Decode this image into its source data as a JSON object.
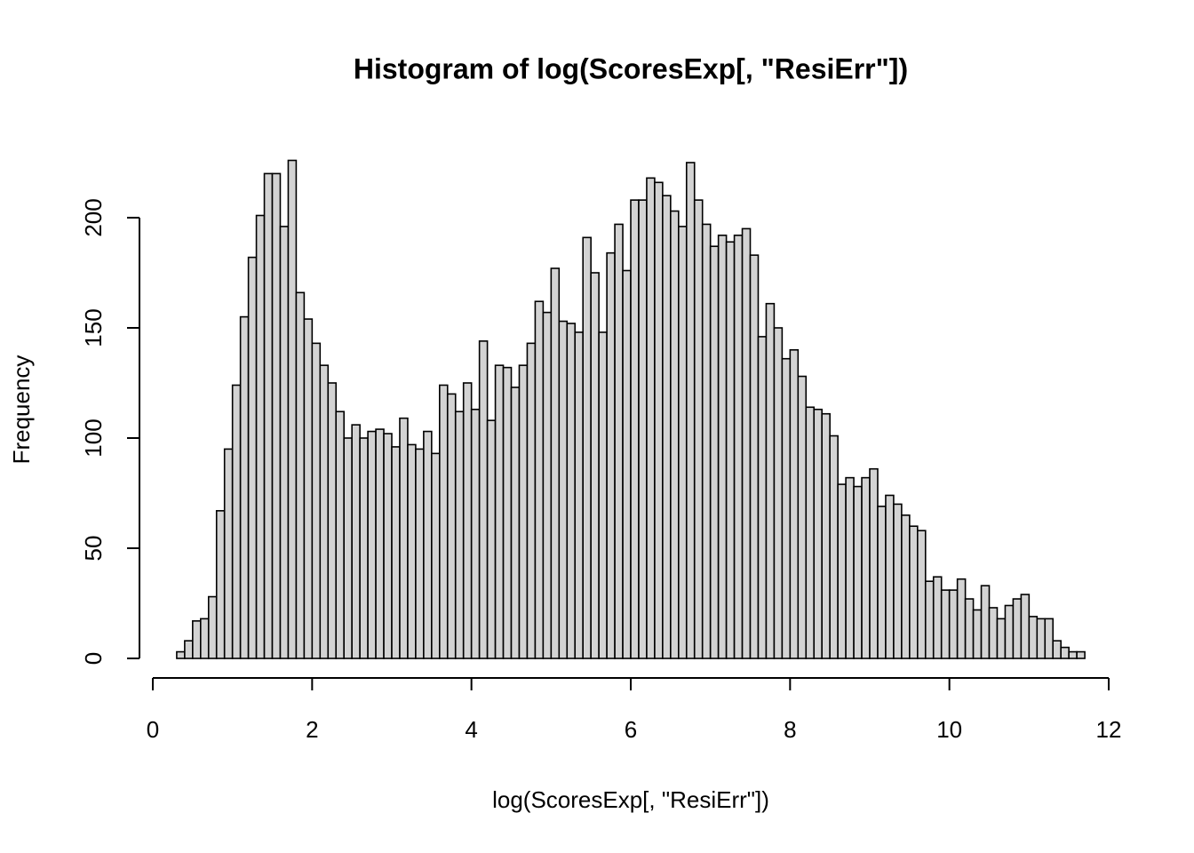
{
  "chart_data": {
    "type": "histogram",
    "title": "Histogram of log(ScoresExp[, \"ResiErr\"])",
    "xlabel": "log(ScoresExp[, \"ResiErr\"])",
    "ylabel": "Frequency",
    "bins": [
      0.3,
      0.4,
      0.5,
      0.6,
      0.7,
      0.8,
      0.9,
      1.0,
      1.1,
      1.2,
      1.3,
      1.4,
      1.5,
      1.6,
      1.7,
      1.8,
      1.9,
      2.0,
      2.1,
      2.2,
      2.3,
      2.4,
      2.5,
      2.6,
      2.7,
      2.8,
      2.9,
      3.0,
      3.1,
      3.2,
      3.3,
      3.4,
      3.5,
      3.6,
      3.7,
      3.8,
      3.9,
      4.0,
      4.1,
      4.2,
      4.3,
      4.4,
      4.5,
      4.6,
      4.7,
      4.8,
      4.9,
      5.0,
      5.1,
      5.2,
      5.3,
      5.4,
      5.5,
      5.6,
      5.7,
      5.8,
      5.9,
      6.0,
      6.1,
      6.2,
      6.3,
      6.4,
      6.5,
      6.6,
      6.7,
      6.8,
      6.9,
      7.0,
      7.1,
      7.2,
      7.3,
      7.4,
      7.5,
      7.6,
      7.7,
      7.8,
      7.9,
      8.0,
      8.1,
      8.2,
      8.3,
      8.4,
      8.5,
      8.6,
      8.7,
      8.8,
      8.9,
      9.0,
      9.1,
      9.2,
      9.3,
      9.4,
      9.5,
      9.6,
      9.7,
      9.8,
      9.9,
      10.0,
      10.1,
      10.2,
      10.3,
      10.4,
      10.5,
      10.6,
      10.7,
      10.8,
      10.9,
      11.0,
      11.1,
      11.2,
      11.3,
      11.4,
      11.5,
      11.6,
      11.7
    ],
    "values": [
      3,
      8,
      17,
      18,
      28,
      67,
      95,
      124,
      155,
      182,
      201,
      220,
      220,
      196,
      226,
      166,
      154,
      143,
      133,
      125,
      112,
      100,
      106,
      100,
      103,
      104,
      102,
      96,
      109,
      97,
      95,
      103,
      93,
      124,
      120,
      112,
      125,
      113,
      144,
      108,
      133,
      132,
      123,
      133,
      143,
      162,
      157,
      177,
      153,
      152,
      148,
      191,
      175,
      148,
      184,
      197,
      176,
      208,
      208,
      218,
      216,
      210,
      203,
      196,
      225,
      208,
      197,
      187,
      192,
      189,
      192,
      195,
      183,
      146,
      161,
      150,
      136,
      140,
      128,
      114,
      113,
      111,
      101,
      79,
      82,
      78,
      82,
      86,
      69,
      74,
      70,
      65,
      60,
      58,
      35,
      37,
      31,
      31,
      36,
      27,
      22,
      33,
      23,
      18,
      24,
      27,
      29,
      19,
      18,
      18,
      8,
      5,
      3,
      3
    ],
    "color": "#d3d3d3",
    "xlim": [
      0,
      12
    ],
    "xticks": [
      0,
      2,
      4,
      6,
      8,
      10,
      12
    ],
    "ylim": [
      0,
      226
    ],
    "yticks": [
      0,
      50,
      100,
      150,
      200
    ]
  }
}
